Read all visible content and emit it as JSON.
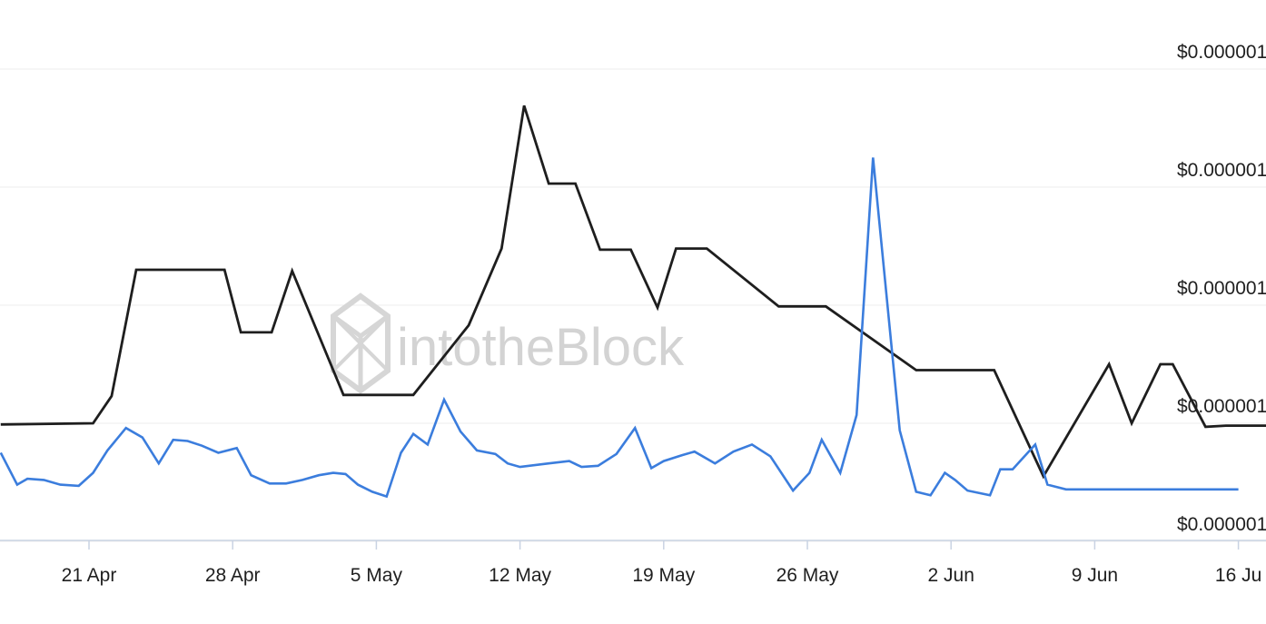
{
  "watermark": {
    "text": "intotheBlock"
  },
  "chart_data": {
    "type": "line",
    "x_tick_labels": [
      "21 Apr",
      "28 Apr",
      "5 May",
      "12 May",
      "19 May",
      "26 May",
      "2 Jun",
      "9 Jun",
      "16 Ju"
    ],
    "y_tick_labels": [
      "$0.000001",
      "$0.000001",
      "$0.000001",
      "$0.000001",
      "$0.000001"
    ],
    "y_tick_values": [
      1,
      2,
      3,
      4,
      5
    ],
    "ylim": [
      0.85,
      5.15
    ],
    "xlim": [
      -4.3,
      58.2
    ],
    "grid": true,
    "legend": "none",
    "series": [
      {
        "color": "#1e1e1e",
        "x": [
          -4.3,
          0.2,
          1.1,
          2.3,
          6.6,
          7.4,
          8.9,
          9.9,
          12.4,
          15.8,
          18.5,
          20.1,
          21.2,
          22.4,
          23.7,
          24.9,
          26.4,
          27.7,
          28.6,
          30.1,
          33.6,
          35.9,
          40.3,
          41.7,
          44.1,
          46.5,
          49.7,
          50.8,
          52.2,
          52.8,
          54.4,
          55.4,
          58.2
        ],
        "y": [
          1.99,
          2.0,
          2.23,
          3.3,
          3.3,
          2.77,
          2.77,
          3.29,
          2.24,
          2.24,
          2.83,
          3.48,
          4.69,
          4.03,
          4.03,
          3.47,
          3.47,
          2.98,
          3.48,
          3.48,
          2.99,
          2.99,
          2.45,
          2.45,
          2.45,
          1.55,
          2.5,
          2.0,
          2.5,
          2.5,
          1.97,
          1.98,
          1.98
        ]
      },
      {
        "color": "#3b7ddd",
        "x": [
          -4.3,
          -3.5,
          -3.0,
          -2.2,
          -1.4,
          -0.5,
          0.2,
          0.9,
          1.8,
          2.6,
          3.4,
          4.1,
          4.8,
          5.5,
          6.3,
          7.2,
          7.9,
          8.8,
          9.6,
          10.4,
          11.2,
          11.9,
          12.5,
          13.1,
          13.8,
          14.5,
          15.2,
          15.8,
          16.5,
          17.3,
          18.1,
          18.9,
          19.8,
          20.4,
          21.0,
          22.4,
          23.4,
          24.0,
          24.8,
          25.7,
          26.6,
          27.4,
          28.0,
          28.9,
          29.5,
          30.5,
          31.4,
          32.3,
          33.2,
          34.3,
          35.1,
          35.7,
          36.6,
          37.4,
          38.2,
          39.5,
          40.3,
          41.0,
          41.7,
          42.2,
          42.8,
          43.9,
          44.4,
          45.0,
          46.1,
          46.7,
          47.6,
          48.3,
          49.2,
          50.0,
          50.9,
          51.4,
          52.3,
          53.0,
          53.8,
          54.6,
          55.3,
          56.0
        ],
        "y": [
          1.75,
          1.48,
          1.53,
          1.52,
          1.48,
          1.47,
          1.58,
          1.77,
          1.96,
          1.88,
          1.66,
          1.86,
          1.85,
          1.81,
          1.75,
          1.79,
          1.56,
          1.49,
          1.49,
          1.52,
          1.56,
          1.58,
          1.57,
          1.48,
          1.42,
          1.38,
          1.75,
          1.91,
          1.82,
          2.2,
          1.93,
          1.77,
          1.74,
          1.66,
          1.63,
          1.66,
          1.68,
          1.63,
          1.64,
          1.74,
          1.96,
          1.62,
          1.68,
          1.73,
          1.76,
          1.66,
          1.76,
          1.82,
          1.72,
          1.43,
          1.58,
          1.86,
          1.58,
          2.07,
          4.25,
          1.94,
          1.42,
          1.39,
          1.58,
          1.52,
          1.43,
          1.39,
          1.61,
          1.61,
          1.82,
          1.48,
          1.44,
          1.44,
          1.44,
          1.44,
          1.44,
          1.44,
          1.44,
          1.44,
          1.44,
          1.44,
          1.44,
          1.44
        ]
      }
    ]
  }
}
